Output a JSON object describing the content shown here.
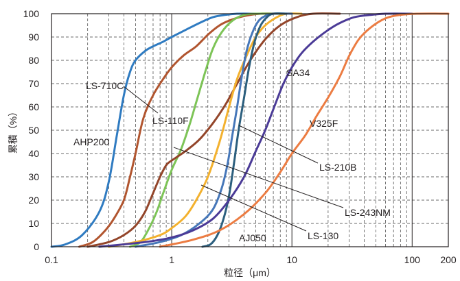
{
  "chart_data": {
    "type": "line",
    "xscale": "log",
    "xlim": [
      0.1,
      200
    ],
    "ylim": [
      0,
      100
    ],
    "xlabel": "粒径（μm）",
    "ylabel": "累積（%）",
    "xticks": [
      "0.1",
      "1",
      "10",
      "100",
      "200"
    ],
    "yticks": [
      "0",
      "10",
      "20",
      "30",
      "40",
      "50",
      "60",
      "70",
      "80",
      "90",
      "100"
    ],
    "grid": true,
    "series": [
      {
        "name": "LS-710C",
        "color": "#2f7bc1",
        "points": [
          [
            0.1,
            0
          ],
          [
            0.13,
            1
          ],
          [
            0.18,
            5
          ],
          [
            0.25,
            15
          ],
          [
            0.3,
            28
          ],
          [
            0.35,
            48
          ],
          [
            0.4,
            65
          ],
          [
            0.45,
            75
          ],
          [
            0.5,
            80
          ],
          [
            0.6,
            84
          ],
          [
            0.7,
            86
          ],
          [
            0.85,
            88
          ],
          [
            1,
            90
          ],
          [
            1.3,
            93
          ],
          [
            1.7,
            96
          ],
          [
            2.2,
            98.5
          ],
          [
            2.8,
            99.5
          ],
          [
            3.5,
            100
          ],
          [
            5,
            100
          ]
        ]
      },
      {
        "name": "LS-110F",
        "color": "#b1552f",
        "points": [
          [
            0.17,
            0
          ],
          [
            0.22,
            2
          ],
          [
            0.28,
            7
          ],
          [
            0.33,
            12
          ],
          [
            0.4,
            20
          ],
          [
            0.45,
            30
          ],
          [
            0.5,
            40
          ],
          [
            0.58,
            55
          ],
          [
            0.7,
            65
          ],
          [
            0.85,
            72
          ],
          [
            1,
            77
          ],
          [
            1.25,
            82
          ],
          [
            1.6,
            86
          ],
          [
            2,
            91
          ],
          [
            2.5,
            95
          ],
          [
            3,
            97
          ],
          [
            4,
            99
          ],
          [
            5.5,
            100
          ],
          [
            8,
            100
          ]
        ]
      },
      {
        "name": "AHP200",
        "color": "#7dc457",
        "points": [
          [
            0.45,
            0
          ],
          [
            0.55,
            2
          ],
          [
            0.65,
            8
          ],
          [
            0.75,
            15
          ],
          [
            0.85,
            23
          ],
          [
            1,
            33
          ],
          [
            1.2,
            42
          ],
          [
            1.4,
            52
          ],
          [
            1.6,
            62
          ],
          [
            1.9,
            75
          ],
          [
            2.2,
            85
          ],
          [
            2.6,
            92
          ],
          [
            3.2,
            97
          ],
          [
            4,
            99.5
          ],
          [
            5,
            100
          ],
          [
            8,
            100
          ]
        ]
      },
      {
        "name": "SA34",
        "color": "#93452a",
        "points": [
          [
            0.2,
            0
          ],
          [
            0.3,
            2
          ],
          [
            0.4,
            5
          ],
          [
            0.5,
            9
          ],
          [
            0.6,
            15
          ],
          [
            0.7,
            23
          ],
          [
            0.8,
            30
          ],
          [
            0.9,
            35
          ],
          [
            1,
            37
          ],
          [
            1.3,
            41
          ],
          [
            1.7,
            46
          ],
          [
            2.2,
            53
          ],
          [
            2.8,
            61
          ],
          [
            3.5,
            70
          ],
          [
            4.5,
            80
          ],
          [
            6,
            89
          ],
          [
            8,
            95
          ],
          [
            11,
            98.5
          ],
          [
            15,
            100
          ],
          [
            25,
            100
          ]
        ]
      },
      {
        "name": "LS-130",
        "color": "#f3b12e",
        "points": [
          [
            0.3,
            0
          ],
          [
            0.5,
            2
          ],
          [
            0.8,
            5
          ],
          [
            1,
            8
          ],
          [
            1.3,
            13
          ],
          [
            1.6,
            20
          ],
          [
            2,
            30
          ],
          [
            2.5,
            45
          ],
          [
            3,
            60
          ],
          [
            3.5,
            72
          ],
          [
            4.2,
            82
          ],
          [
            5,
            90
          ],
          [
            6,
            95
          ],
          [
            7.5,
            98.5
          ],
          [
            9,
            100
          ],
          [
            12,
            100
          ]
        ]
      },
      {
        "name": "LS-210B",
        "color": "#4677b9",
        "points": [
          [
            0.5,
            0
          ],
          [
            0.8,
            2
          ],
          [
            1.2,
            5
          ],
          [
            1.7,
            10
          ],
          [
            2.2,
            16
          ],
          [
            2.6,
            25
          ],
          [
            2.9,
            35
          ],
          [
            3.2,
            48
          ],
          [
            3.5,
            60
          ],
          [
            3.8,
            72
          ],
          [
            4.2,
            84
          ],
          [
            4.7,
            92
          ],
          [
            5.3,
            97
          ],
          [
            6,
            99
          ],
          [
            7,
            100
          ],
          [
            10,
            100
          ]
        ]
      },
      {
        "name": "AJ050",
        "color": "#2c5f7e",
        "points": [
          [
            1.8,
            0
          ],
          [
            2.1,
            1
          ],
          [
            2.4,
            5
          ],
          [
            2.7,
            12
          ],
          [
            3,
            22
          ],
          [
            3.3,
            36
          ],
          [
            3.6,
            50
          ],
          [
            4,
            64
          ],
          [
            4.4,
            77
          ],
          [
            4.9,
            88
          ],
          [
            5.5,
            95
          ],
          [
            6.2,
            98.5
          ],
          [
            7,
            100
          ],
          [
            9,
            100
          ]
        ]
      },
      {
        "name": "LS-243NM",
        "color": "#4b3b97",
        "points": [
          [
            0.25,
            0
          ],
          [
            0.6,
            2
          ],
          [
            1,
            4
          ],
          [
            1.5,
            7
          ],
          [
            2.2,
            12
          ],
          [
            3,
            20
          ],
          [
            4,
            30
          ],
          [
            5,
            41
          ],
          [
            6,
            50
          ],
          [
            7,
            59
          ],
          [
            8.5,
            70
          ],
          [
            10,
            77
          ],
          [
            12,
            83
          ],
          [
            15,
            88
          ],
          [
            20,
            93
          ],
          [
            25,
            96
          ],
          [
            33,
            98.5
          ],
          [
            45,
            99.5
          ],
          [
            60,
            100
          ],
          [
            100,
            100
          ]
        ]
      },
      {
        "name": "V325F",
        "color": "#ec7c42",
        "points": [
          [
            0.8,
            0
          ],
          [
            1.5,
            3
          ],
          [
            2.5,
            7
          ],
          [
            4,
            14
          ],
          [
            6,
            23
          ],
          [
            8,
            32
          ],
          [
            10,
            40
          ],
          [
            13,
            48
          ],
          [
            16,
            56
          ],
          [
            20,
            64
          ],
          [
            25,
            73
          ],
          [
            30,
            82
          ],
          [
            36,
            89
          ],
          [
            45,
            94
          ],
          [
            60,
            98
          ],
          [
            80,
            99.5
          ],
          [
            110,
            100
          ],
          [
            200,
            100
          ]
        ]
      }
    ],
    "labels": [
      {
        "text": "LS-710C",
        "series": "LS-710C"
      },
      {
        "text": "LS-110F",
        "series": "LS-110F"
      },
      {
        "text": "AHP200",
        "series": "AHP200"
      },
      {
        "text": "SA34",
        "series": "SA34"
      },
      {
        "text": "V325F",
        "series": "V325F"
      },
      {
        "text": "LS-210B",
        "series": "LS-210B"
      },
      {
        "text": "LS-243NM",
        "series": "LS-243NM"
      },
      {
        "text": "LS-130",
        "series": "LS-130"
      },
      {
        "text": "AJ050",
        "series": "AJ050"
      }
    ]
  }
}
